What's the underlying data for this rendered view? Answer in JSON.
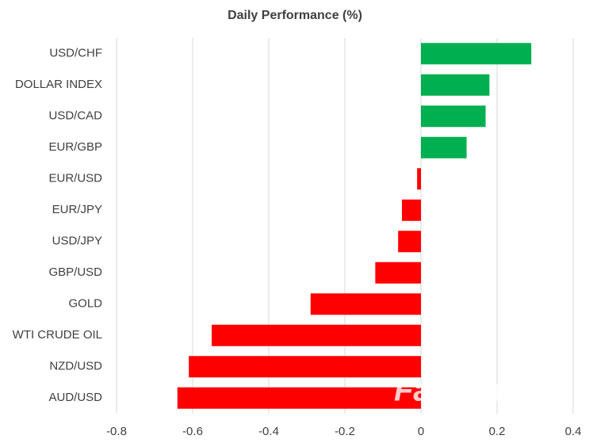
{
  "chart_data": {
    "type": "hbar",
    "title": "Daily Performance (%)",
    "categories": [
      "USD/CHF",
      "DOLLAR INDEX",
      "USD/CAD",
      "EUR/GBP",
      "EUR/USD",
      "EUR/JPY",
      "USD/JPY",
      "GBP/USD",
      "GOLD",
      "WTI CRUDE OIL",
      "NZD/USD",
      "AUD/USD"
    ],
    "values": [
      0.29,
      0.18,
      0.17,
      0.12,
      -0.01,
      -0.05,
      -0.06,
      -0.12,
      -0.29,
      -0.55,
      -0.61,
      -0.64
    ],
    "positive_color": "#00b050",
    "negative_color": "#ff0000",
    "xlim": [
      -0.8,
      0.4
    ],
    "xticks": [
      -0.8,
      -0.6,
      -0.4,
      -0.2,
      0,
      0.2,
      0.4
    ],
    "grid": true,
    "watermark": "FastBull"
  }
}
